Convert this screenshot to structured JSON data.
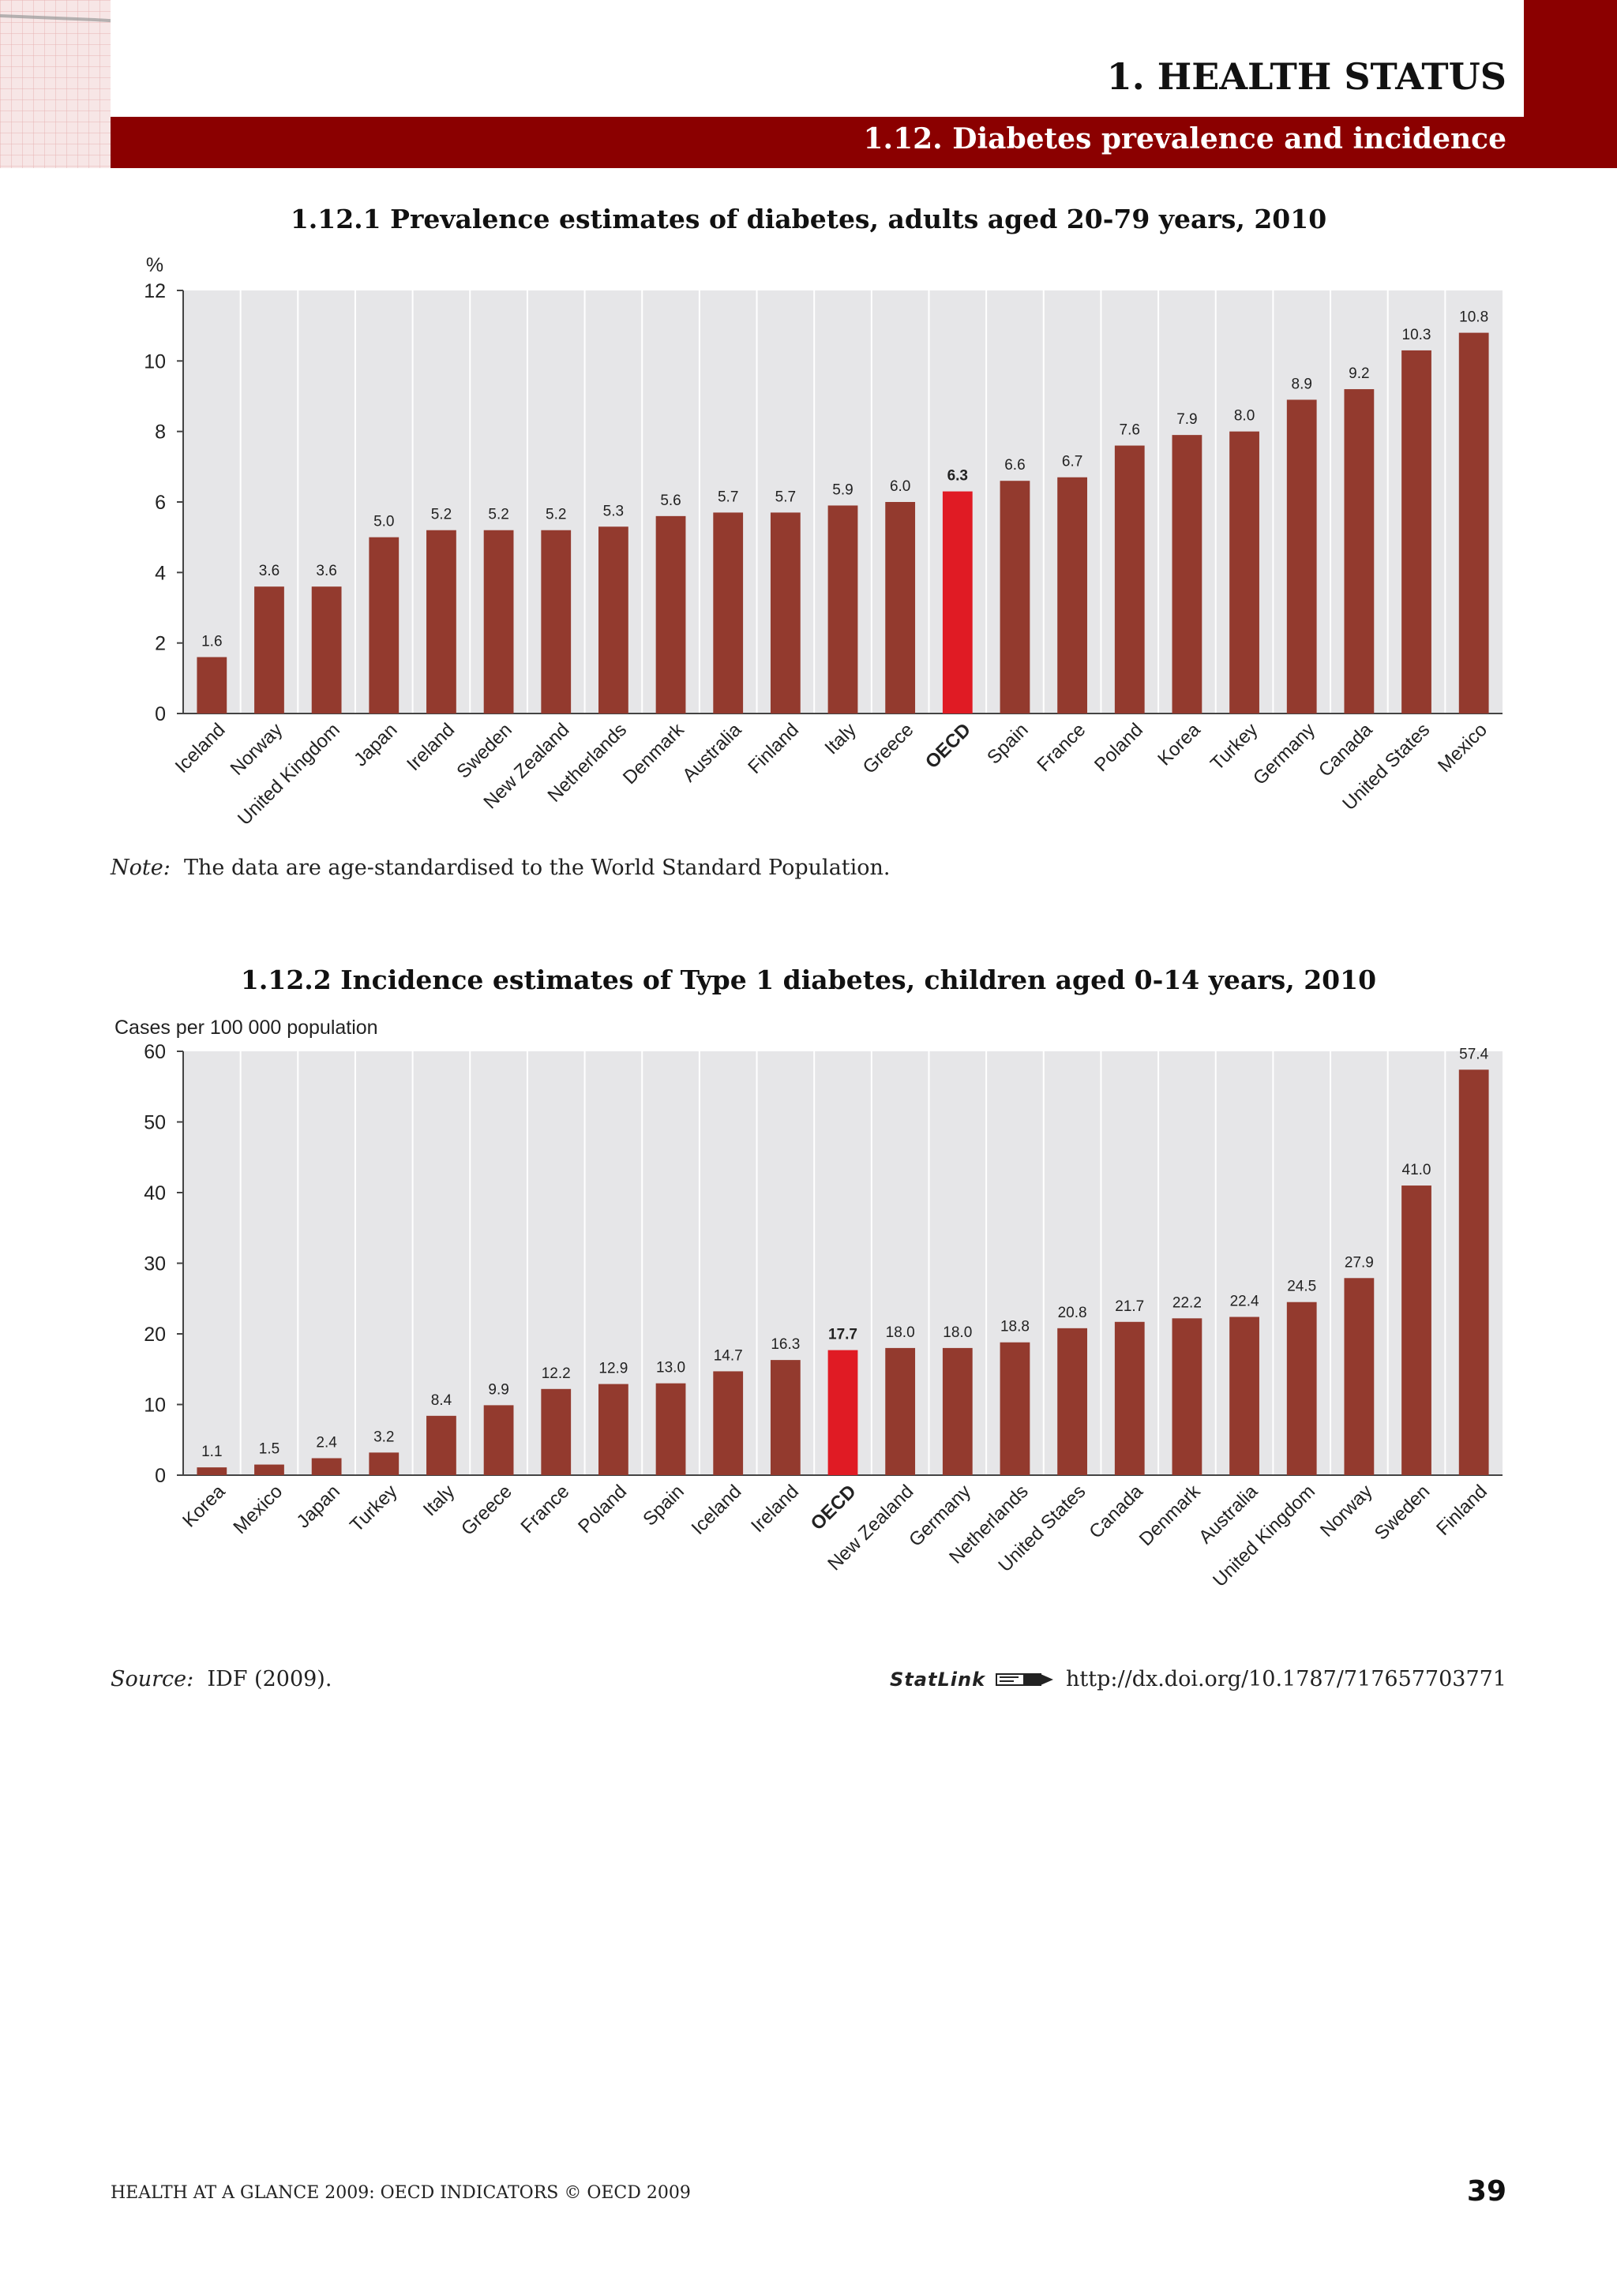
{
  "header": {
    "chapter_title": "1. HEALTH STATUS",
    "section_title": "1.12. Diabetes prevalence and incidence",
    "accent_color": "#8b0000"
  },
  "chart1": {
    "title": "1.12.1 Prevalence estimates of diabetes, adults aged 20-79 years, 2010"
  },
  "chart2": {
    "title": "1.12.2 Incidence estimates of Type 1 diabetes, children aged 0-14 years, 2010"
  },
  "note": {
    "label": "Note:",
    "text": "The data are age-standardised to the World Standard Population."
  },
  "source": {
    "label": "Source:",
    "text": "IDF (2009)."
  },
  "statlink": {
    "label": "StatLink",
    "url": "http://dx.doi.org/10.1787/717657703771"
  },
  "footer": {
    "text": "HEALTH AT A GLANCE 2009: OECD INDICATORS © OECD 2009",
    "page_number": "39"
  },
  "colors": {
    "bar": "#933a2e",
    "highlight_bar": "#e01b24",
    "plot_background": "#e6e6e8"
  },
  "chart_data": [
    {
      "type": "bar",
      "title": "1.12.1 Prevalence estimates of diabetes, adults aged 20-79 years, 2010",
      "ylabel": "%",
      "xlabel": "",
      "ylim": [
        0,
        12
      ],
      "yticks": [
        0,
        2,
        4,
        6,
        8,
        10,
        12
      ],
      "grid": "vertical",
      "highlight": "OECD",
      "categories": [
        "Iceland",
        "Norway",
        "United Kingdom",
        "Japan",
        "Ireland",
        "Sweden",
        "New Zealand",
        "Netherlands",
        "Denmark",
        "Australia",
        "Finland",
        "Italy",
        "Greece",
        "OECD",
        "Spain",
        "France",
        "Poland",
        "Korea",
        "Turkey",
        "Germany",
        "Canada",
        "United States",
        "Mexico"
      ],
      "values": [
        1.6,
        3.6,
        3.6,
        5.0,
        5.2,
        5.2,
        5.2,
        5.3,
        5.6,
        5.7,
        5.7,
        5.9,
        6.0,
        6.3,
        6.6,
        6.7,
        7.6,
        7.9,
        8.0,
        8.9,
        9.2,
        10.3,
        10.8
      ],
      "labels": [
        "1.6",
        "3.6",
        "3.6",
        "5.0",
        "5.2",
        "5.2",
        "5.2",
        "5.3",
        "5.6",
        "5.7",
        "5.7",
        "5.9",
        "6.0",
        "6.3",
        "6.6",
        "6.7",
        "7.6",
        "7.9",
        "8.0",
        "8.9",
        "9.2",
        "10.3",
        "10.8"
      ]
    },
    {
      "type": "bar",
      "title": "1.12.2 Incidence estimates of Type 1 diabetes, children aged 0-14 years, 2010",
      "ylabel": "Cases per 100 000 population",
      "xlabel": "",
      "ylim": [
        0,
        60
      ],
      "yticks": [
        0,
        10,
        20,
        30,
        40,
        50,
        60
      ],
      "grid": "vertical",
      "highlight": "OECD",
      "categories": [
        "Korea",
        "Mexico",
        "Japan",
        "Turkey",
        "Italy",
        "Greece",
        "France",
        "Poland",
        "Spain",
        "Iceland",
        "Ireland",
        "OECD",
        "New Zealand",
        "Germany",
        "Netherlands",
        "United States",
        "Canada",
        "Denmark",
        "Australia",
        "United Kingdom",
        "Norway",
        "Sweden",
        "Finland"
      ],
      "values": [
        1.1,
        1.5,
        2.4,
        3.2,
        8.4,
        9.9,
        12.2,
        12.9,
        13.0,
        14.7,
        16.3,
        17.7,
        18.0,
        18.0,
        18.8,
        20.8,
        21.7,
        22.2,
        22.4,
        24.5,
        27.9,
        41.0,
        57.4
      ],
      "labels": [
        "1.1",
        "1.5",
        "2.4",
        "3.2",
        "8.4",
        "9.9",
        "12.2",
        "12.9",
        "13.0",
        "14.7",
        "16.3",
        "17.7",
        "18.0",
        "18.0",
        "18.8",
        "20.8",
        "21.7",
        "22.2",
        "22.4",
        "24.5",
        "27.9",
        "41.0",
        "57.4"
      ]
    }
  ]
}
